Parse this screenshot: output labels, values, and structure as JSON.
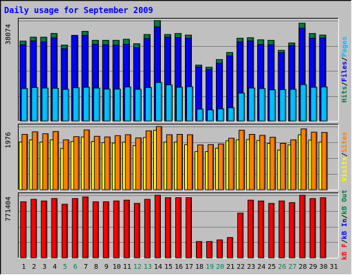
{
  "title": "Daily usage for September 2009",
  "colors": {
    "background": "#c0c0c0",
    "title": "#0000ff",
    "hits": "#008040",
    "files": "#0000ff",
    "pages": "#00c0ff",
    "visits": "#ffff00",
    "sites": "#ff8000",
    "kb_f": "#ff0000",
    "kb_in": "#0000ff",
    "kb_out": "#008040",
    "weekend_label": "#00805c",
    "weekday_label": "#000000"
  },
  "chart_data": [
    {
      "type": "bar",
      "name": "hits-files-pages",
      "ymax_label": "38074",
      "ylim": [
        0,
        38074
      ],
      "legend": [
        {
          "label": "Hits",
          "color": "#008040"
        },
        {
          "label": "/",
          "color": "#000000"
        },
        {
          "label": "Files",
          "color": "#0000ff"
        },
        {
          "label": "/",
          "color": "#000000"
        },
        {
          "label": "Pages",
          "color": "#00c0ff"
        }
      ],
      "categories": [
        "1",
        "2",
        "3",
        "4",
        "5",
        "6",
        "7",
        "8",
        "9",
        "10",
        "11",
        "12",
        "13",
        "14",
        "15",
        "16",
        "17",
        "18",
        "19",
        "20",
        "21",
        "22",
        "23",
        "24",
        "25",
        "26",
        "27",
        "28",
        "29",
        "30",
        "31"
      ],
      "series": [
        {
          "name": "Hits",
          "values": [
            30300,
            31800,
            31800,
            33200,
            28800,
            32200,
            34000,
            30600,
            30600,
            30600,
            31000,
            29300,
            32800,
            38074,
            32800,
            33200,
            32600,
            21200,
            20400,
            23300,
            26000,
            31400,
            31600,
            30800,
            30600,
            26800,
            29600,
            37100,
            33200,
            32600,
            0
          ]
        },
        {
          "name": "Files",
          "values": [
            28900,
            30400,
            30000,
            31500,
            27400,
            32500,
            32500,
            29100,
            28900,
            28800,
            29100,
            27800,
            31300,
            35700,
            31800,
            31700,
            31400,
            20500,
            19500,
            21900,
            24700,
            30000,
            30400,
            29000,
            28900,
            25900,
            28600,
            35200,
            31400,
            31500,
            0
          ]
        },
        {
          "name": "Pages",
          "values": [
            12300,
            12700,
            12500,
            12400,
            12000,
            12600,
            12800,
            12500,
            12100,
            12100,
            12900,
            12000,
            12700,
            14600,
            13700,
            12800,
            13000,
            4500,
            4200,
            4600,
            5000,
            10600,
            12500,
            12300,
            11800,
            11900,
            12000,
            13800,
            12800,
            12900,
            0
          ]
        }
      ]
    },
    {
      "type": "bar",
      "name": "visits-sites",
      "ymax_label": "1976",
      "ylim": [
        0,
        1976
      ],
      "legend": [
        {
          "label": "Visits",
          "color": "#ffff00"
        },
        {
          "label": "/",
          "color": "#000000"
        },
        {
          "label": "Sites",
          "color": "#ff8000"
        }
      ],
      "categories": [
        "1",
        "2",
        "3",
        "4",
        "5",
        "6",
        "7",
        "8",
        "9",
        "10",
        "11",
        "12",
        "13",
        "14",
        "15",
        "16",
        "17",
        "18",
        "19",
        "20",
        "21",
        "22",
        "23",
        "24",
        "25",
        "26",
        "27",
        "28",
        "29",
        "30",
        "31"
      ],
      "series": [
        {
          "name": "Visits",
          "values": [
            1490,
            1560,
            1490,
            1560,
            1290,
            1510,
            1650,
            1510,
            1470,
            1460,
            1490,
            1380,
            1630,
            1860,
            1490,
            1490,
            1410,
            1190,
            1190,
            1300,
            1530,
            1560,
            1570,
            1540,
            1450,
            1240,
            1400,
            1720,
            1550,
            1490,
            0
          ]
        },
        {
          "name": "Sites",
          "values": [
            1730,
            1810,
            1750,
            1820,
            1560,
            1660,
            1870,
            1670,
            1650,
            1690,
            1720,
            1620,
            1840,
            1976,
            1720,
            1730,
            1720,
            1400,
            1410,
            1430,
            1610,
            1860,
            1730,
            1700,
            1640,
            1450,
            1560,
            1900,
            1800,
            1790,
            0
          ]
        }
      ]
    },
    {
      "type": "bar",
      "name": "kbytes",
      "ymax_label": "771404",
      "ylim": [
        0,
        771404
      ],
      "legend": [
        {
          "label": "kB F",
          "color": "#ff0000"
        },
        {
          "label": "/",
          "color": "#000000"
        },
        {
          "label": "kB In",
          "color": "#0000ff"
        },
        {
          "label": "/",
          "color": "#000000"
        },
        {
          "label": "kB Out",
          "color": "#008040"
        }
      ],
      "categories": [
        "1",
        "2",
        "3",
        "4",
        "5",
        "6",
        "7",
        "8",
        "9",
        "10",
        "11",
        "12",
        "13",
        "14",
        "15",
        "16",
        "17",
        "18",
        "19",
        "20",
        "21",
        "22",
        "23",
        "24",
        "25",
        "26",
        "27",
        "28",
        "29",
        "30",
        "31"
      ],
      "series": [
        {
          "name": "kB F",
          "values": [
            691000,
            721000,
            701000,
            731000,
            661000,
            731000,
            751000,
            691000,
            691000,
            701000,
            711000,
            671000,
            721000,
            771404,
            741000,
            741000,
            741000,
            201000,
            201000,
            221000,
            251000,
            551000,
            711000,
            701000,
            671000,
            701000,
            681000,
            771000,
            731000,
            741000,
            0
          ]
        }
      ]
    }
  ],
  "day_labels": [
    {
      "text": "1",
      "weekend": false
    },
    {
      "text": "2",
      "weekend": false
    },
    {
      "text": "3",
      "weekend": false
    },
    {
      "text": "4",
      "weekend": false
    },
    {
      "text": "5",
      "weekend": true
    },
    {
      "text": "6",
      "weekend": true
    },
    {
      "text": "7",
      "weekend": false
    },
    {
      "text": "8",
      "weekend": false
    },
    {
      "text": "9",
      "weekend": false
    },
    {
      "text": "10",
      "weekend": false
    },
    {
      "text": "11",
      "weekend": false
    },
    {
      "text": "12",
      "weekend": true
    },
    {
      "text": "13",
      "weekend": true
    },
    {
      "text": "14",
      "weekend": false
    },
    {
      "text": "15",
      "weekend": false
    },
    {
      "text": "16",
      "weekend": false
    },
    {
      "text": "17",
      "weekend": false
    },
    {
      "text": "18",
      "weekend": false
    },
    {
      "text": "19",
      "weekend": true
    },
    {
      "text": "20",
      "weekend": true
    },
    {
      "text": "21",
      "weekend": false
    },
    {
      "text": "22",
      "weekend": false
    },
    {
      "text": "23",
      "weekend": false
    },
    {
      "text": "24",
      "weekend": false
    },
    {
      "text": "25",
      "weekend": false
    },
    {
      "text": "26",
      "weekend": true
    },
    {
      "text": "27",
      "weekend": true
    },
    {
      "text": "28",
      "weekend": false
    },
    {
      "text": "29",
      "weekend": false
    },
    {
      "text": "30",
      "weekend": false
    },
    {
      "text": "31",
      "weekend": false
    }
  ]
}
